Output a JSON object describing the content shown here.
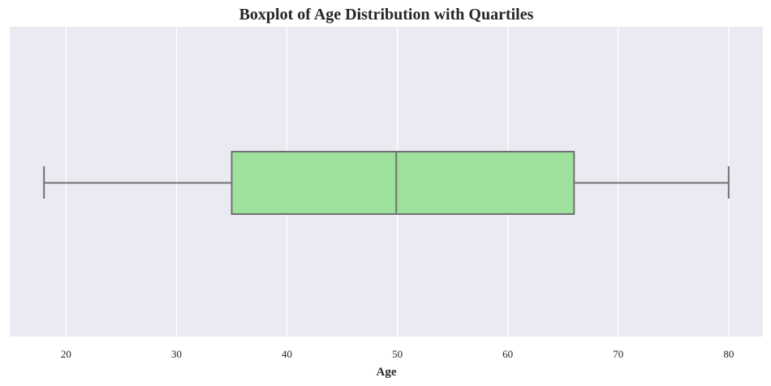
{
  "chart_data": {
    "type": "boxplot",
    "title": "Boxplot of Age Distribution with Quartiles",
    "xlabel": "Age",
    "ylabel": "",
    "orientation": "horizontal",
    "xlim": [
      14.9,
      83.1
    ],
    "xticks": [
      20,
      30,
      40,
      50,
      60,
      70,
      80
    ],
    "grid": true,
    "box": {
      "whisker_low": 18,
      "q1": 35,
      "median": 49.9,
      "q3": 66,
      "whisker_high": 80
    },
    "colors": {
      "plot_background": "#eaeaf2",
      "grid": "#ffffff",
      "box_fill": "#9de19d",
      "box_edge": "#717171"
    }
  }
}
